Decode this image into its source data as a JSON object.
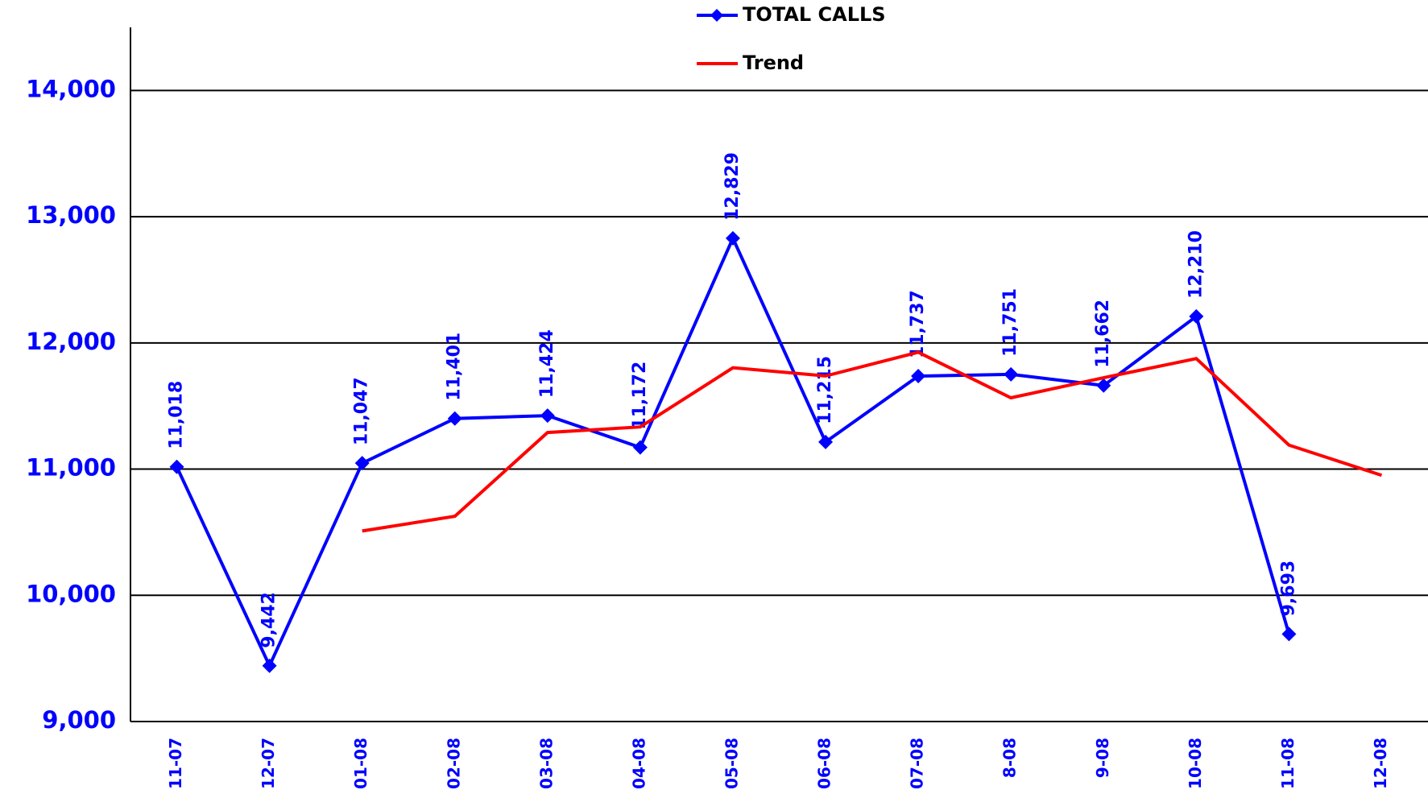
{
  "chart_data": {
    "type": "line",
    "categories": [
      "11-07",
      "12-07",
      "01-08",
      "02-08",
      "03-08",
      "04-08",
      "05-08",
      "06-08",
      "07-08",
      "8-08",
      "9-08",
      "10-08",
      "11-08",
      "12-08"
    ],
    "series": [
      {
        "name": "TOTAL CALLS",
        "color": "#0000ff",
        "marker": "diamond",
        "values": [
          11018,
          9442,
          11047,
          11401,
          11424,
          11172,
          12829,
          11215,
          11737,
          11751,
          11662,
          12210,
          9693,
          null
        ],
        "value_labels": [
          "11,018",
          "9,442",
          "11,047",
          "11,401",
          "11,424",
          "11,172",
          "12,829",
          "11,215",
          "11,737",
          "11,751",
          "11,662",
          "12,210",
          "9,693",
          null
        ]
      },
      {
        "name": "Trend",
        "color": "#ff0000",
        "values": [
          null,
          null,
          10510,
          10626,
          11290,
          11334,
          11803,
          11738,
          11926,
          11565,
          11724,
          11876,
          11190,
          10951
        ]
      }
    ],
    "ylim": [
      9000,
      14500
    ],
    "yticks": [
      {
        "value": 9000,
        "label": "9,000"
      },
      {
        "value": 10000,
        "label": "10,000"
      },
      {
        "value": 11000,
        "label": "11,000"
      },
      {
        "value": 12000,
        "label": "12,000"
      },
      {
        "value": 13000,
        "label": "13,000"
      },
      {
        "value": 14000,
        "label": "14,000"
      }
    ],
    "grid": true,
    "legend": "top"
  }
}
